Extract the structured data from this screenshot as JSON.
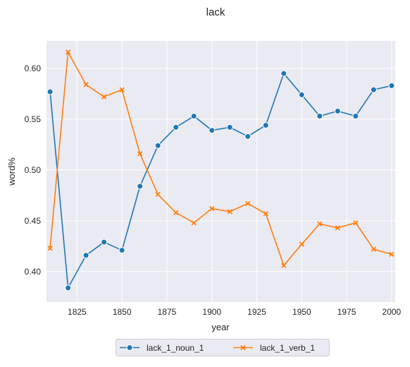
{
  "chart_data": {
    "type": "line",
    "title": "lack",
    "xlabel": "year",
    "ylabel": "word%",
    "xlim": [
      1808,
      2002
    ],
    "ylim": [
      0.37,
      0.627
    ],
    "x_ticks": [
      1825,
      1850,
      1875,
      1900,
      1925,
      1950,
      1975,
      2000
    ],
    "y_ticks": [
      0.4,
      0.45,
      0.5,
      0.55,
      0.6
    ],
    "y_tick_labels": [
      "0.40",
      "0.45",
      "0.50",
      "0.55",
      "0.60"
    ],
    "grid": true,
    "legend_placement": "bottom-center",
    "x": [
      1810,
      1820,
      1830,
      1840,
      1850,
      1860,
      1870,
      1880,
      1890,
      1900,
      1910,
      1920,
      1930,
      1940,
      1950,
      1960,
      1970,
      1980,
      1990,
      2000
    ],
    "series": [
      {
        "name": "lack_1_noun_1",
        "color": "#1f77b4",
        "marker": "circle",
        "values": [
          0.577,
          0.384,
          0.416,
          0.429,
          0.421,
          0.484,
          0.524,
          0.542,
          0.553,
          0.539,
          0.542,
          0.533,
          0.544,
          0.595,
          0.574,
          0.553,
          0.558,
          0.553,
          0.579,
          0.583
        ]
      },
      {
        "name": "lack_1_verb_1",
        "color": "#ff7f0e",
        "marker": "x",
        "values": [
          0.423,
          0.616,
          0.584,
          0.572,
          0.579,
          0.516,
          0.476,
          0.458,
          0.448,
          0.462,
          0.459,
          0.467,
          0.457,
          0.406,
          0.427,
          0.447,
          0.443,
          0.448,
          0.422,
          0.417
        ]
      }
    ]
  }
}
